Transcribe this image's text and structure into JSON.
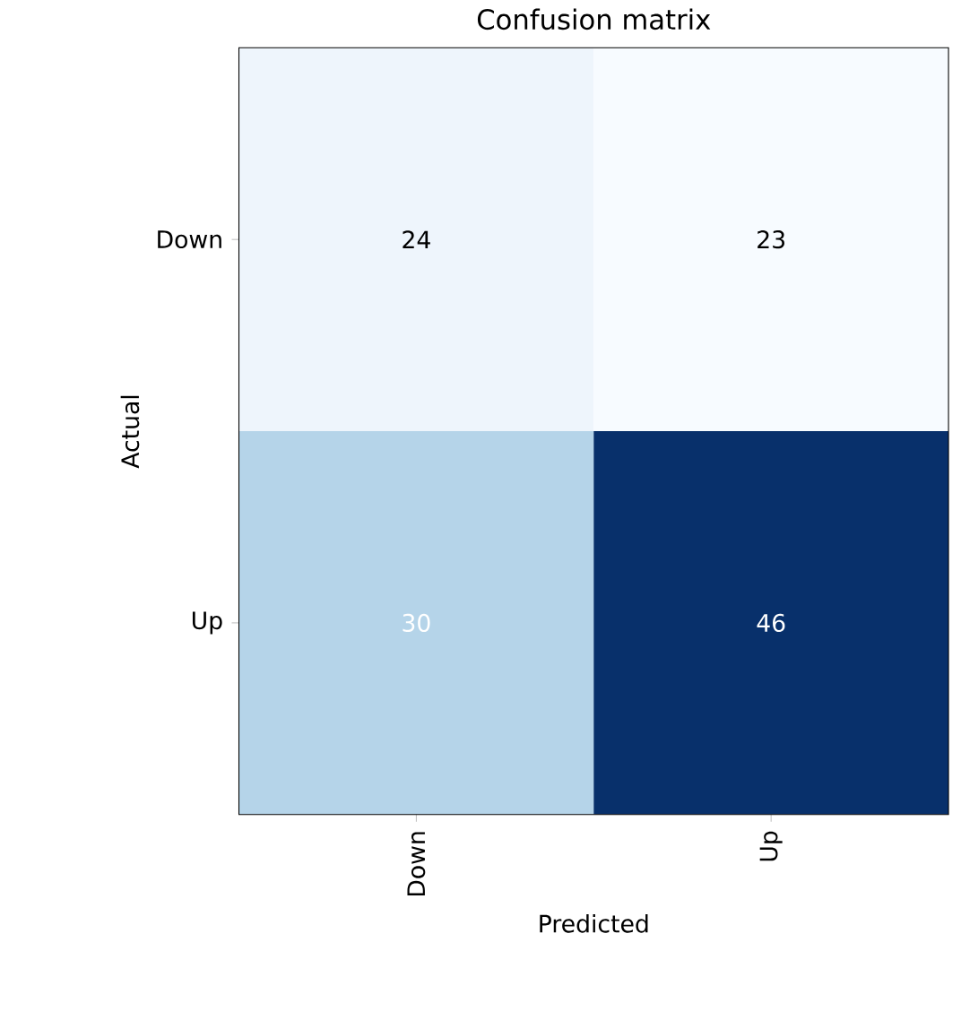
{
  "chart_data": {
    "type": "heatmap",
    "title": "Confusion matrix",
    "xlabel": "Predicted",
    "ylabel": "Actual",
    "data_labels": true,
    "categories": [
      "Down",
      "Up"
    ],
    "y_categories": [
      "Down",
      "Up"
    ],
    "cells": [
      [
        24,
        23
      ],
      [
        30,
        46
      ]
    ]
  }
}
